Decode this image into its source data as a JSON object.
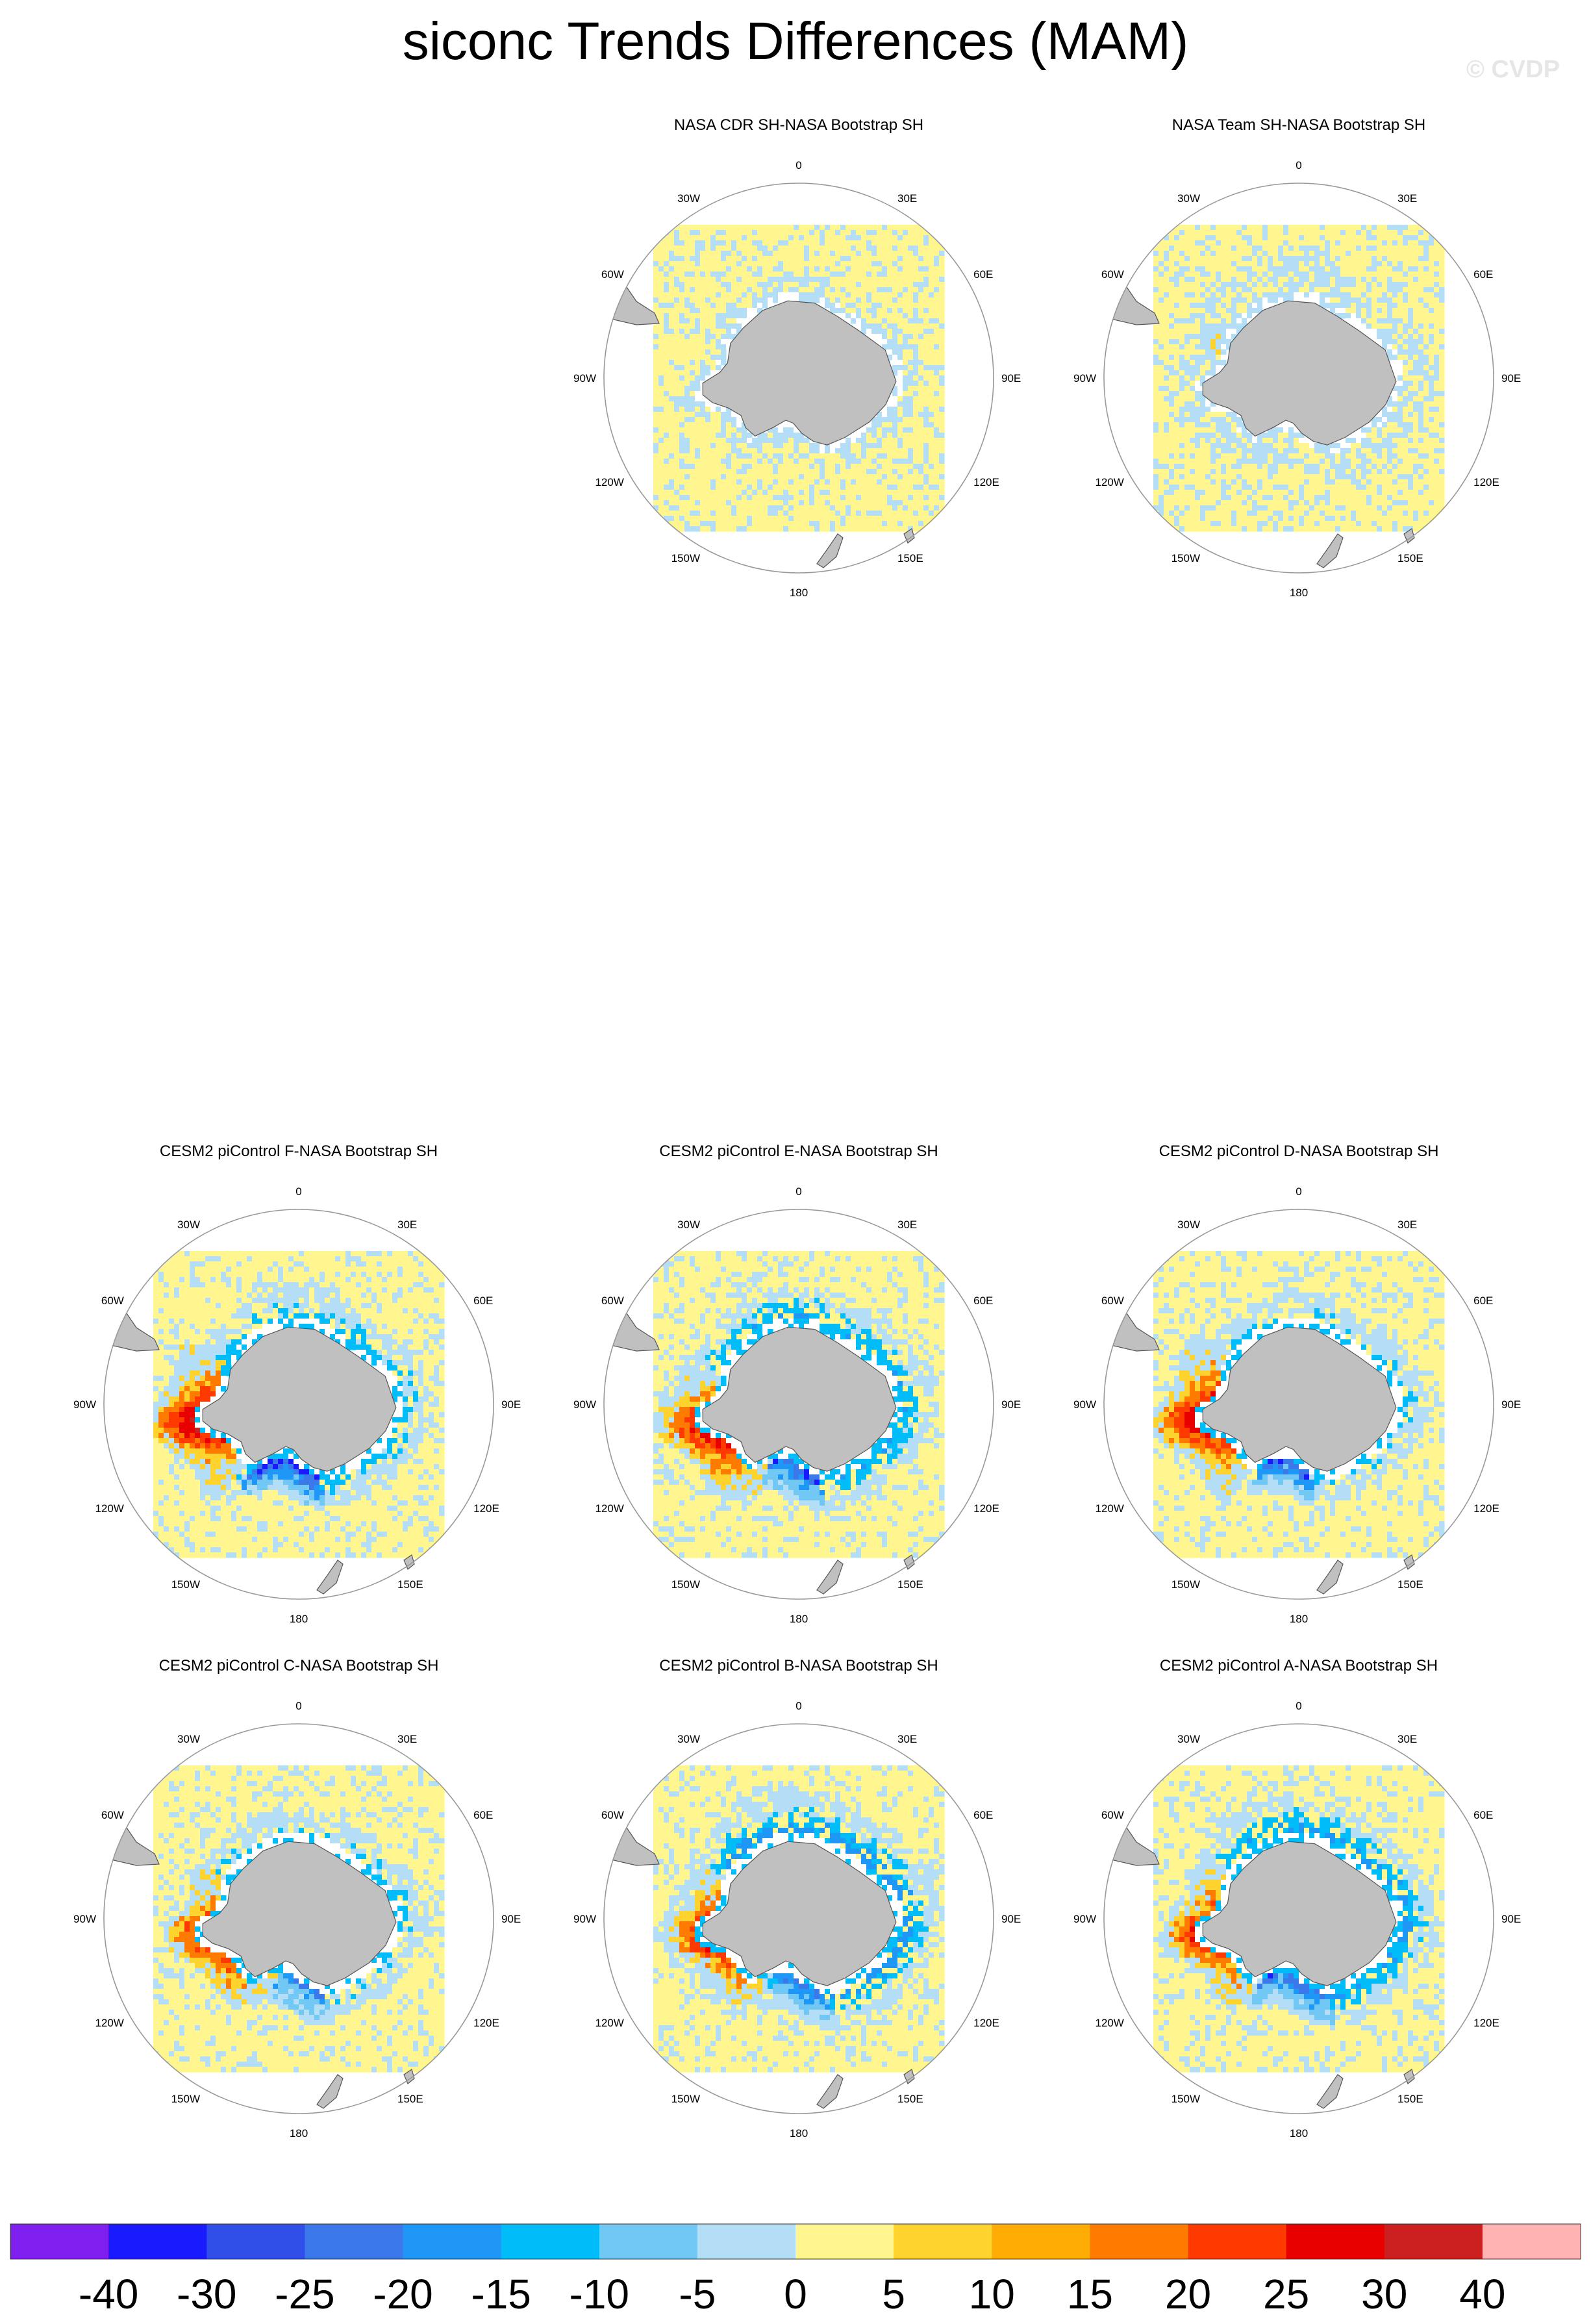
{
  "title": "siconc Trends Differences (MAM)",
  "watermark": "© CVDP",
  "chart_data": {
    "type": "heatmap",
    "projection": "south-polar-stereographic",
    "variable": "siconc",
    "season": "MAM",
    "lon_labels": [
      "0",
      "30E",
      "60E",
      "90E",
      "120E",
      "150E",
      "180",
      "150W",
      "120W",
      "90W",
      "60W",
      "30W"
    ],
    "panels": [
      {
        "title": "NASA CDR SH-NASA Bootstrap SH",
        "pattern": "obs_a"
      },
      {
        "title": "NASA Team SH-NASA Bootstrap SH",
        "pattern": "obs_b"
      },
      {
        "title": "CESM2 piControl F-NASA Bootstrap SH",
        "pattern": "model_f"
      },
      {
        "title": "CESM2 piControl E-NASA Bootstrap SH",
        "pattern": "model_e"
      },
      {
        "title": "CESM2 piControl D-NASA Bootstrap SH",
        "pattern": "model_d"
      },
      {
        "title": "CESM2 piControl C-NASA Bootstrap SH",
        "pattern": "model_c"
      },
      {
        "title": "CESM2 piControl B-NASA Bootstrap SH",
        "pattern": "model_b"
      },
      {
        "title": "CESM2 piControl A-NASA Bootstrap SH",
        "pattern": "model_a"
      }
    ],
    "colorbar": {
      "labels": [
        "-40",
        "-30",
        "-25",
        "-20",
        "-15",
        "-10",
        "-5",
        "0",
        "5",
        "10",
        "15",
        "20",
        "25",
        "30",
        "40"
      ],
      "colors": [
        "#7f1ff0",
        "#1a1aff",
        "#2f4fe8",
        "#3b78ea",
        "#1f97f7",
        "#00bdfa",
        "#72c8f5",
        "#b4def5",
        "#fff68f",
        "#ffd32d",
        "#ffad05",
        "#ff7b00",
        "#ff3a00",
        "#e80000",
        "#cc1f1f",
        "#ffb3b3"
      ]
    },
    "colors": {
      "land": "#c0c0c0",
      "no_data": "#ffffff",
      "grid_circle": "#999999"
    }
  }
}
